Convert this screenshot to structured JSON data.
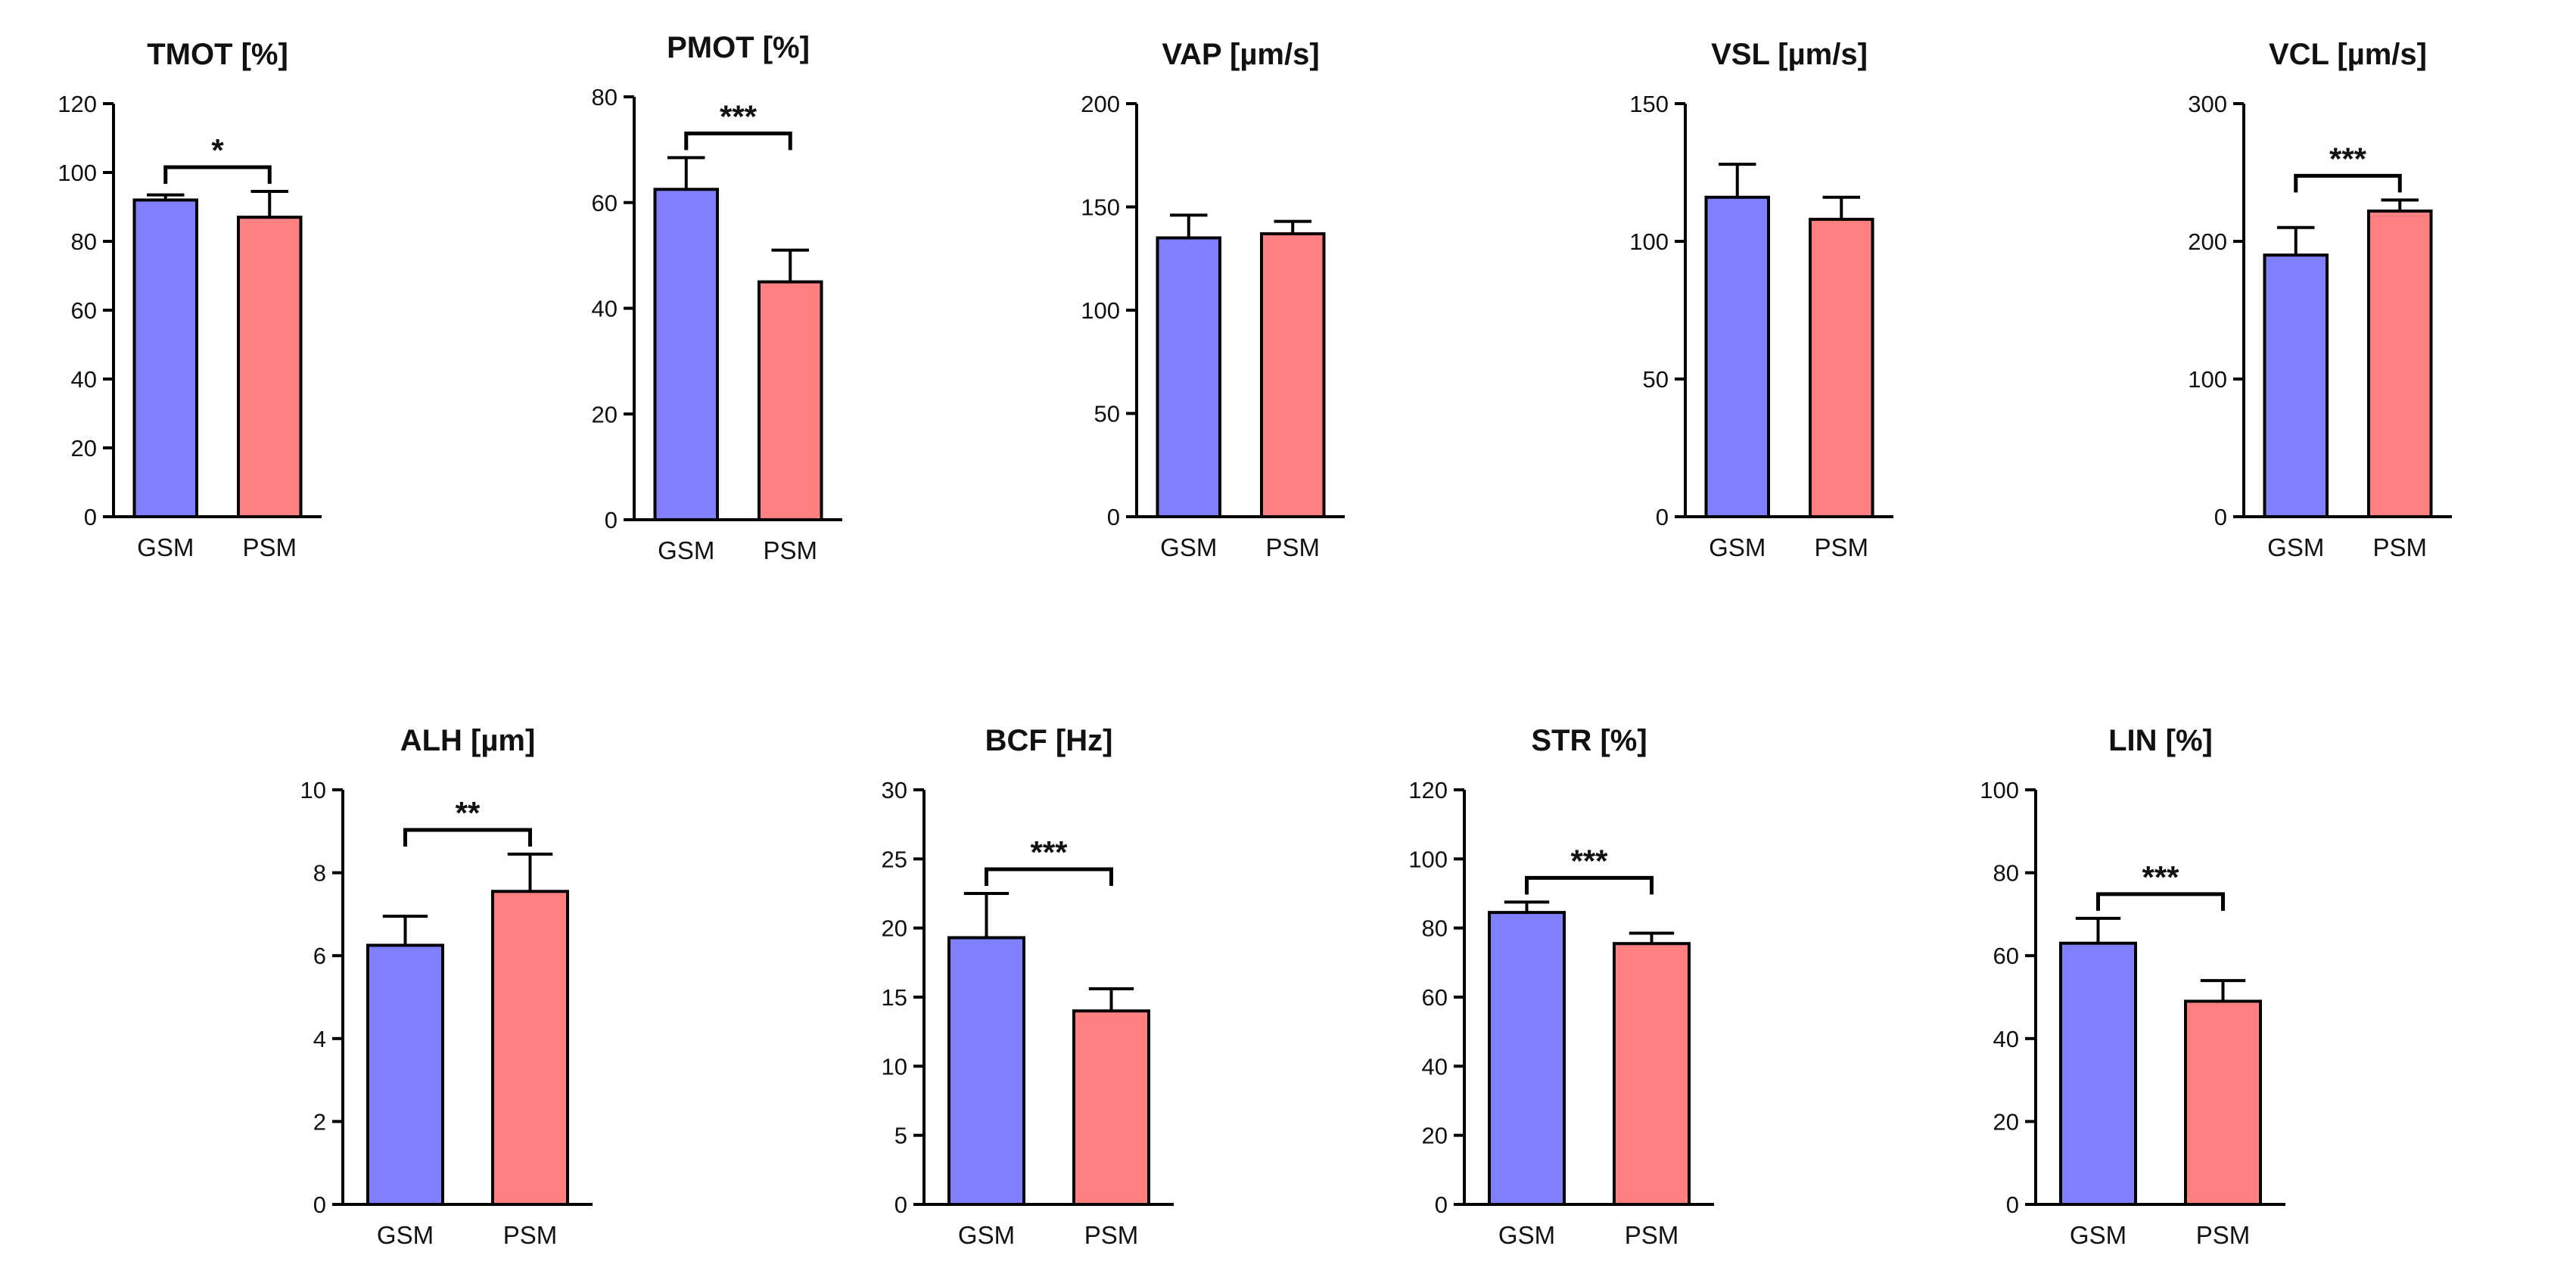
{
  "colors": {
    "gsm": "#8080ff",
    "psm": "#ff8080",
    "stroke": "#000000"
  },
  "chart_data": [
    {
      "type": "bar",
      "title": "TMOT [%]",
      "categories": [
        "GSM",
        "PSM"
      ],
      "values": [
        92,
        87
      ],
      "errors": [
        1.5,
        7.5
      ],
      "ylim": [
        0,
        120
      ],
      "yticks": [
        0,
        20,
        40,
        60,
        80,
        100,
        120
      ],
      "significance": "*"
    },
    {
      "type": "bar",
      "title": "PMOT [%]",
      "categories": [
        "GSM",
        "PSM"
      ],
      "values": [
        62.5,
        45
      ],
      "errors": [
        6,
        6
      ],
      "ylim": [
        0,
        80
      ],
      "yticks": [
        0,
        20,
        40,
        60,
        80
      ],
      "significance": "***"
    },
    {
      "type": "bar",
      "title": "VAP [µm/s]",
      "categories": [
        "GSM",
        "PSM"
      ],
      "values": [
        135,
        137
      ],
      "errors": [
        11,
        6
      ],
      "ylim": [
        0,
        200
      ],
      "yticks": [
        0,
        50,
        100,
        150,
        200
      ],
      "significance": ""
    },
    {
      "type": "bar",
      "title": "VSL [µm/s]",
      "categories": [
        "GSM",
        "PSM"
      ],
      "values": [
        116,
        108
      ],
      "errors": [
        12,
        8
      ],
      "ylim": [
        0,
        150
      ],
      "yticks": [
        0,
        50,
        100,
        150
      ],
      "significance": ""
    },
    {
      "type": "bar",
      "title": "VCL [µm/s]",
      "categories": [
        "GSM",
        "PSM"
      ],
      "values": [
        190,
        222
      ],
      "errors": [
        20,
        8
      ],
      "ylim": [
        0,
        300
      ],
      "yticks": [
        0,
        100,
        200,
        300
      ],
      "significance": "***"
    },
    {
      "type": "bar",
      "title": "ALH [µm]",
      "categories": [
        "GSM",
        "PSM"
      ],
      "values": [
        6.25,
        7.55
      ],
      "errors": [
        0.7,
        0.9
      ],
      "ylim": [
        0,
        10
      ],
      "yticks": [
        0,
        2,
        4,
        6,
        8,
        10
      ],
      "significance": "**"
    },
    {
      "type": "bar",
      "title": "BCF [Hz]",
      "categories": [
        "GSM",
        "PSM"
      ],
      "values": [
        19.3,
        14
      ],
      "errors": [
        3.2,
        1.6
      ],
      "ylim": [
        0,
        30
      ],
      "yticks": [
        0,
        5,
        10,
        15,
        20,
        25,
        30
      ],
      "significance": "***"
    },
    {
      "type": "bar",
      "title": "STR [%]",
      "categories": [
        "GSM",
        "PSM"
      ],
      "values": [
        84.5,
        75.5
      ],
      "errors": [
        3,
        3
      ],
      "ylim": [
        0,
        120
      ],
      "yticks": [
        0,
        20,
        40,
        60,
        80,
        100,
        120
      ],
      "significance": "***"
    },
    {
      "type": "bar",
      "title": "LIN [%]",
      "categories": [
        "GSM",
        "PSM"
      ],
      "values": [
        63,
        49
      ],
      "errors": [
        6,
        5
      ],
      "ylim": [
        0,
        100
      ],
      "yticks": [
        0,
        20,
        40,
        60,
        80,
        100
      ],
      "significance": "***"
    }
  ]
}
